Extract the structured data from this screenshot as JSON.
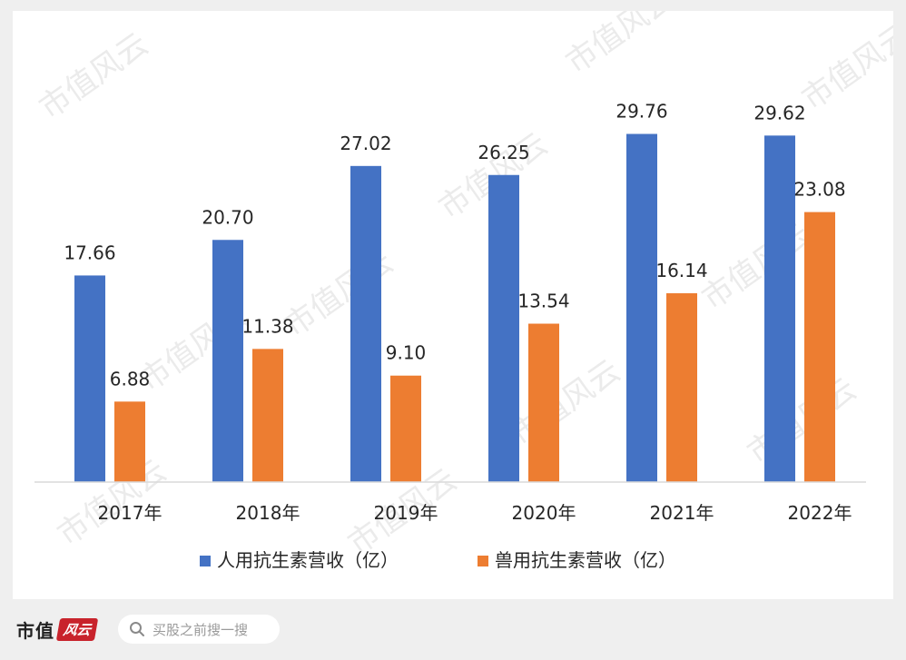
{
  "chart_data": {
    "type": "bar",
    "categories": [
      "2017年",
      "2018年",
      "2019年",
      "2020年",
      "2021年",
      "2022年"
    ],
    "series": [
      {
        "name": "人用抗生素营收（亿）",
        "values": [
          17.66,
          20.7,
          27.02,
          26.25,
          29.76,
          29.62
        ],
        "labels": [
          "17.66",
          "20.70",
          "27.02",
          "26.25",
          "29.76",
          "29.62"
        ],
        "color": "#4472C4"
      },
      {
        "name": "兽用抗生素营收（亿）",
        "values": [
          6.88,
          11.38,
          9.1,
          13.54,
          16.14,
          23.08
        ],
        "labels": [
          "6.88",
          "11.38",
          "9.10",
          "13.54",
          "16.14",
          "23.08"
        ],
        "color": "#ED7D31"
      }
    ],
    "ylim": [
      0,
      35
    ],
    "grid": false,
    "legend": "bottom",
    "data_labels": true
  },
  "watermark": "市值风云",
  "footer": {
    "brand_name": "市值",
    "brand_script": "风云",
    "search_placeholder": "买股之前搜一搜",
    "search_icon": "search-icon"
  }
}
